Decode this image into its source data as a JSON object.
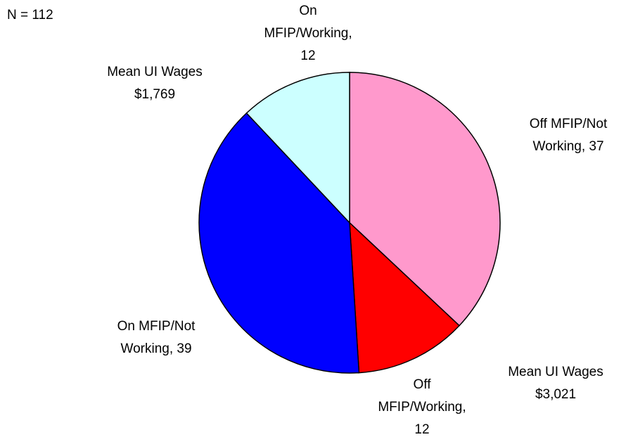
{
  "chart_data": {
    "type": "pie",
    "values": [
      37,
      12,
      39,
      12
    ],
    "value_labels": [
      [
        "Off MFIP/Not",
        "Working, 37"
      ],
      [
        "Off",
        "MFIP/Working,",
        "12"
      ],
      [
        "On MFIP/Not",
        "Working, 39"
      ],
      [
        "On",
        "MFIP/Working,",
        "12"
      ]
    ],
    "colors": [
      "#ff99cc",
      "#ff0000",
      "#0000ff",
      "#ccffff"
    ],
    "annotations": [
      [
        "N = 112"
      ],
      [
        "Mean UI Wages",
        "$1,769"
      ],
      [
        "Mean UI Wages",
        "$3,021"
      ]
    ]
  }
}
